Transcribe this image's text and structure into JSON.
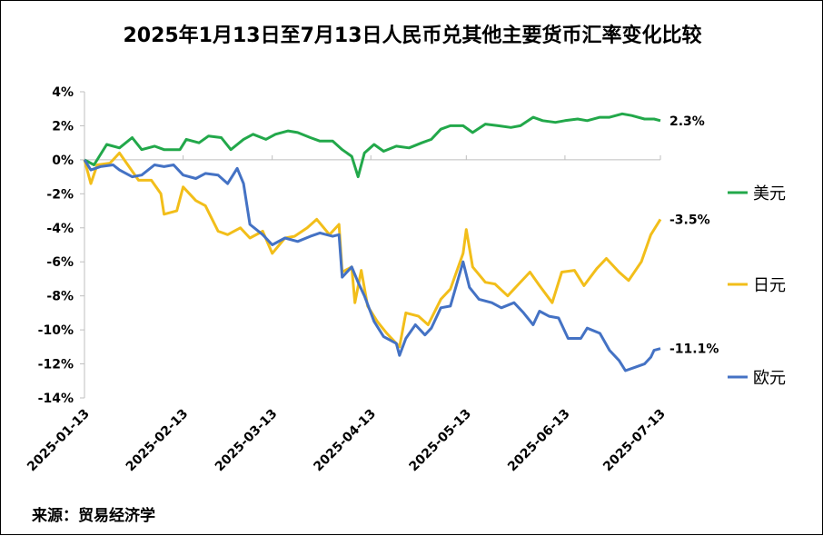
{
  "chart_data": {
    "type": "line",
    "title": "2025年1月13日至7月13日人民币兑其他主要货币汇率变化比较",
    "source": "来源：贸易经济学",
    "ylim": [
      -14,
      4
    ],
    "y_ticks": [
      "4%",
      "2%",
      "0%",
      "-2%",
      "-4%",
      "-6%",
      "-8%",
      "-10%",
      "-12%",
      "-14%"
    ],
    "x_ticks": [
      "2025-01-13",
      "2025-02-13",
      "2025-03-13",
      "2025-04-13",
      "2025-05-13",
      "2025-06-13",
      "2025-07-13"
    ],
    "grid": false,
    "legend_position": "right",
    "series": [
      {
        "name": "美元",
        "color": "#22A84A",
        "end_label": "2.3%",
        "values": [
          {
            "x": "2025-01-13",
            "y": 0.0
          },
          {
            "x": "2025-01-16",
            "y": -0.3
          },
          {
            "x": "2025-01-20",
            "y": 0.9
          },
          {
            "x": "2025-01-24",
            "y": 0.7
          },
          {
            "x": "2025-01-28",
            "y": 1.3
          },
          {
            "x": "2025-01-31",
            "y": 0.6
          },
          {
            "x": "2025-02-04",
            "y": 0.8
          },
          {
            "x": "2025-02-07",
            "y": 0.6
          },
          {
            "x": "2025-02-12",
            "y": 0.6
          },
          {
            "x": "2025-02-14",
            "y": 1.2
          },
          {
            "x": "2025-02-18",
            "y": 1.0
          },
          {
            "x": "2025-02-21",
            "y": 1.4
          },
          {
            "x": "2025-02-25",
            "y": 1.3
          },
          {
            "x": "2025-02-28",
            "y": 0.6
          },
          {
            "x": "2025-03-04",
            "y": 1.2
          },
          {
            "x": "2025-03-07",
            "y": 1.5
          },
          {
            "x": "2025-03-11",
            "y": 1.2
          },
          {
            "x": "2025-03-14",
            "y": 1.5
          },
          {
            "x": "2025-03-18",
            "y": 1.7
          },
          {
            "x": "2025-03-21",
            "y": 1.6
          },
          {
            "x": "2025-03-25",
            "y": 1.3
          },
          {
            "x": "2025-03-28",
            "y": 1.1
          },
          {
            "x": "2025-04-01",
            "y": 1.1
          },
          {
            "x": "2025-04-04",
            "y": 0.6
          },
          {
            "x": "2025-04-07",
            "y": 0.2
          },
          {
            "x": "2025-04-09",
            "y": -1.0
          },
          {
            "x": "2025-04-11",
            "y": 0.4
          },
          {
            "x": "2025-04-14",
            "y": 0.9
          },
          {
            "x": "2025-04-17",
            "y": 0.5
          },
          {
            "x": "2025-04-21",
            "y": 0.8
          },
          {
            "x": "2025-04-25",
            "y": 0.7
          },
          {
            "x": "2025-04-29",
            "y": 1.0
          },
          {
            "x": "2025-05-02",
            "y": 1.2
          },
          {
            "x": "2025-05-05",
            "y": 1.8
          },
          {
            "x": "2025-05-08",
            "y": 2.0
          },
          {
            "x": "2025-05-12",
            "y": 2.0
          },
          {
            "x": "2025-05-15",
            "y": 1.6
          },
          {
            "x": "2025-05-19",
            "y": 2.1
          },
          {
            "x": "2025-05-23",
            "y": 2.0
          },
          {
            "x": "2025-05-27",
            "y": 1.9
          },
          {
            "x": "2025-05-30",
            "y": 2.0
          },
          {
            "x": "2025-06-03",
            "y": 2.5
          },
          {
            "x": "2025-06-06",
            "y": 2.3
          },
          {
            "x": "2025-06-10",
            "y": 2.2
          },
          {
            "x": "2025-06-13",
            "y": 2.3
          },
          {
            "x": "2025-06-17",
            "y": 2.4
          },
          {
            "x": "2025-06-20",
            "y": 2.3
          },
          {
            "x": "2025-06-24",
            "y": 2.5
          },
          {
            "x": "2025-06-27",
            "y": 2.5
          },
          {
            "x": "2025-07-01",
            "y": 2.7
          },
          {
            "x": "2025-07-04",
            "y": 2.6
          },
          {
            "x": "2025-07-08",
            "y": 2.4
          },
          {
            "x": "2025-07-11",
            "y": 2.4
          },
          {
            "x": "2025-07-13",
            "y": 2.3
          }
        ]
      },
      {
        "name": "日元",
        "color": "#F2BE1A",
        "end_label": "-3.5%",
        "values": [
          {
            "x": "2025-01-13",
            "y": 0.0
          },
          {
            "x": "2025-01-15",
            "y": -1.4
          },
          {
            "x": "2025-01-17",
            "y": -0.3
          },
          {
            "x": "2025-01-21",
            "y": -0.2
          },
          {
            "x": "2025-01-24",
            "y": 0.4
          },
          {
            "x": "2025-01-27",
            "y": -0.4
          },
          {
            "x": "2025-01-30",
            "y": -1.2
          },
          {
            "x": "2025-02-03",
            "y": -1.2
          },
          {
            "x": "2025-02-06",
            "y": -2.0
          },
          {
            "x": "2025-02-07",
            "y": -3.2
          },
          {
            "x": "2025-02-11",
            "y": -3.0
          },
          {
            "x": "2025-02-13",
            "y": -1.6
          },
          {
            "x": "2025-02-17",
            "y": -2.4
          },
          {
            "x": "2025-02-20",
            "y": -2.7
          },
          {
            "x": "2025-02-24",
            "y": -4.2
          },
          {
            "x": "2025-02-27",
            "y": -4.4
          },
          {
            "x": "2025-03-03",
            "y": -4.0
          },
          {
            "x": "2025-03-06",
            "y": -4.6
          },
          {
            "x": "2025-03-10",
            "y": -4.2
          },
          {
            "x": "2025-03-13",
            "y": -5.5
          },
          {
            "x": "2025-03-17",
            "y": -4.6
          },
          {
            "x": "2025-03-20",
            "y": -4.5
          },
          {
            "x": "2025-03-24",
            "y": -4.0
          },
          {
            "x": "2025-03-27",
            "y": -3.5
          },
          {
            "x": "2025-03-31",
            "y": -4.4
          },
          {
            "x": "2025-04-03",
            "y": -3.8
          },
          {
            "x": "2025-04-04",
            "y": -6.6
          },
          {
            "x": "2025-04-07",
            "y": -6.3
          },
          {
            "x": "2025-04-08",
            "y": -8.4
          },
          {
            "x": "2025-04-10",
            "y": -6.5
          },
          {
            "x": "2025-04-12",
            "y": -8.6
          },
          {
            "x": "2025-04-15",
            "y": -9.5
          },
          {
            "x": "2025-04-18",
            "y": -10.2
          },
          {
            "x": "2025-04-22",
            "y": -11.0
          },
          {
            "x": "2025-04-24",
            "y": -9.0
          },
          {
            "x": "2025-04-28",
            "y": -9.2
          },
          {
            "x": "2025-05-01",
            "y": -9.7
          },
          {
            "x": "2025-05-05",
            "y": -8.2
          },
          {
            "x": "2025-05-08",
            "y": -7.6
          },
          {
            "x": "2025-05-12",
            "y": -5.5
          },
          {
            "x": "2025-05-13",
            "y": -4.1
          },
          {
            "x": "2025-05-15",
            "y": -6.3
          },
          {
            "x": "2025-05-19",
            "y": -7.2
          },
          {
            "x": "2025-05-22",
            "y": -7.3
          },
          {
            "x": "2025-05-26",
            "y": -8.0
          },
          {
            "x": "2025-05-29",
            "y": -7.4
          },
          {
            "x": "2025-06-02",
            "y": -6.6
          },
          {
            "x": "2025-06-05",
            "y": -7.4
          },
          {
            "x": "2025-06-09",
            "y": -8.4
          },
          {
            "x": "2025-06-12",
            "y": -6.6
          },
          {
            "x": "2025-06-16",
            "y": -6.5
          },
          {
            "x": "2025-06-19",
            "y": -7.4
          },
          {
            "x": "2025-06-23",
            "y": -6.4
          },
          {
            "x": "2025-06-26",
            "y": -5.8
          },
          {
            "x": "2025-06-30",
            "y": -6.6
          },
          {
            "x": "2025-07-03",
            "y": -7.1
          },
          {
            "x": "2025-07-07",
            "y": -6.0
          },
          {
            "x": "2025-07-10",
            "y": -4.4
          },
          {
            "x": "2025-07-13",
            "y": -3.5
          }
        ]
      },
      {
        "name": "欧元",
        "color": "#4472C4",
        "end_label": "-11.1%",
        "values": [
          {
            "x": "2025-01-13",
            "y": 0.0
          },
          {
            "x": "2025-01-15",
            "y": -0.6
          },
          {
            "x": "2025-01-18",
            "y": -0.4
          },
          {
            "x": "2025-01-22",
            "y": -0.3
          },
          {
            "x": "2025-01-24",
            "y": -0.6
          },
          {
            "x": "2025-01-28",
            "y": -1.0
          },
          {
            "x": "2025-01-31",
            "y": -0.9
          },
          {
            "x": "2025-02-04",
            "y": -0.3
          },
          {
            "x": "2025-02-07",
            "y": -0.4
          },
          {
            "x": "2025-02-10",
            "y": -0.3
          },
          {
            "x": "2025-02-13",
            "y": -0.9
          },
          {
            "x": "2025-02-17",
            "y": -1.1
          },
          {
            "x": "2025-02-20",
            "y": -0.8
          },
          {
            "x": "2025-02-24",
            "y": -0.9
          },
          {
            "x": "2025-02-27",
            "y": -1.4
          },
          {
            "x": "2025-03-02",
            "y": -0.5
          },
          {
            "x": "2025-03-04",
            "y": -1.4
          },
          {
            "x": "2025-03-06",
            "y": -3.8
          },
          {
            "x": "2025-03-10",
            "y": -4.4
          },
          {
            "x": "2025-03-13",
            "y": -5.0
          },
          {
            "x": "2025-03-17",
            "y": -4.6
          },
          {
            "x": "2025-03-21",
            "y": -4.8
          },
          {
            "x": "2025-03-25",
            "y": -4.5
          },
          {
            "x": "2025-03-28",
            "y": -4.3
          },
          {
            "x": "2025-04-01",
            "y": -4.5
          },
          {
            "x": "2025-04-03",
            "y": -4.4
          },
          {
            "x": "2025-04-04",
            "y": -6.9
          },
          {
            "x": "2025-04-07",
            "y": -6.3
          },
          {
            "x": "2025-04-09",
            "y": -7.2
          },
          {
            "x": "2025-04-11",
            "y": -8.0
          },
          {
            "x": "2025-04-14",
            "y": -9.5
          },
          {
            "x": "2025-04-17",
            "y": -10.4
          },
          {
            "x": "2025-04-21",
            "y": -10.8
          },
          {
            "x": "2025-04-22",
            "y": -11.5
          },
          {
            "x": "2025-04-24",
            "y": -10.5
          },
          {
            "x": "2025-04-27",
            "y": -9.7
          },
          {
            "x": "2025-04-30",
            "y": -10.3
          },
          {
            "x": "2025-05-02",
            "y": -9.9
          },
          {
            "x": "2025-05-05",
            "y": -8.7
          },
          {
            "x": "2025-05-08",
            "y": -8.6
          },
          {
            "x": "2025-05-12",
            "y": -6.0
          },
          {
            "x": "2025-05-14",
            "y": -7.5
          },
          {
            "x": "2025-05-17",
            "y": -8.2
          },
          {
            "x": "2025-05-21",
            "y": -8.4
          },
          {
            "x": "2025-05-24",
            "y": -8.7
          },
          {
            "x": "2025-05-28",
            "y": -8.4
          },
          {
            "x": "2025-05-31",
            "y": -9.0
          },
          {
            "x": "2025-06-03",
            "y": -9.7
          },
          {
            "x": "2025-06-05",
            "y": -8.9
          },
          {
            "x": "2025-06-08",
            "y": -9.2
          },
          {
            "x": "2025-06-11",
            "y": -9.3
          },
          {
            "x": "2025-06-14",
            "y": -10.5
          },
          {
            "x": "2025-06-18",
            "y": -10.5
          },
          {
            "x": "2025-06-20",
            "y": -9.9
          },
          {
            "x": "2025-06-24",
            "y": -10.2
          },
          {
            "x": "2025-06-27",
            "y": -11.2
          },
          {
            "x": "2025-06-30",
            "y": -11.8
          },
          {
            "x": "2025-07-02",
            "y": -12.4
          },
          {
            "x": "2025-07-05",
            "y": -12.2
          },
          {
            "x": "2025-07-08",
            "y": -12.0
          },
          {
            "x": "2025-07-10",
            "y": -11.6
          },
          {
            "x": "2025-07-11",
            "y": -11.2
          },
          {
            "x": "2025-07-13",
            "y": -11.1
          }
        ]
      }
    ]
  }
}
